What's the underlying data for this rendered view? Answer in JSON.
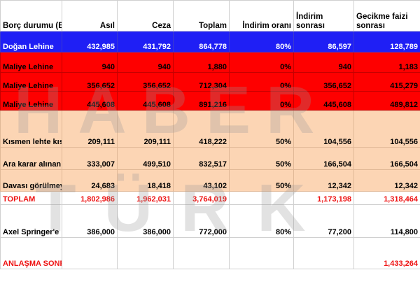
{
  "headers": {
    "label": "Borç durumu (Bin TL)",
    "asil": "Asıl",
    "ceza": "Ceza",
    "toplam": "Toplam",
    "indirim_orani": "İndirim oranı",
    "indirim_sonrasi": "İndirim sonrası",
    "gecikme": "Gecikme faizi sonrası"
  },
  "rows": [
    {
      "label": "Doğan Lehine",
      "asil": "432,985",
      "ceza": "431,792",
      "toplam": "864,778",
      "oran": "80%",
      "indirim": "86,597",
      "gecikme": "128,789"
    },
    {
      "label": "Maliye Lehine",
      "asil": "940",
      "ceza": "940",
      "toplam": "1,880",
      "oran": "0%",
      "indirim": "940",
      "gecikme": "1,183"
    },
    {
      "label": "Maliye Lehine",
      "asil": "356,652",
      "ceza": "356,652",
      "toplam": "712,304",
      "oran": "0%",
      "indirim": "356,652",
      "gecikme": "415,279"
    },
    {
      "label": "Maliye Lehine",
      "asil": "445,608",
      "ceza": "445,608",
      "toplam": "891,216",
      "oran": "0%",
      "indirim": "445,608",
      "gecikme": "489,812"
    },
    {
      "label": "Kısmen lehte kısmen alehte",
      "asil": "209,111",
      "ceza": "209,111",
      "toplam": "418,222",
      "oran": "50%",
      "indirim": "104,556",
      "gecikme": "104,556"
    },
    {
      "label": "Ara karar alınan",
      "asil": "333,007",
      "ceza": "499,510",
      "toplam": "832,517",
      "oran": "50%",
      "indirim": "166,504",
      "gecikme": "166,504"
    },
    {
      "label": "Davası görülmeyen",
      "asil": "24,683",
      "ceza": "18,418",
      "toplam": "43,102",
      "oran": "50%",
      "indirim": "12,342",
      "gecikme": "12,342"
    },
    {
      "label": "TOPLAM",
      "asil": "1,802,986",
      "ceza": "1,962,031",
      "toplam": "3,764,019",
      "oran": "",
      "indirim": "1,173,198",
      "gecikme": "1,318,464"
    },
    {
      "label": "Axel Springer'e hisse satışı",
      "asil": "386,000",
      "ceza": "386,000",
      "toplam": "772,000",
      "oran": "80%",
      "indirim": "77,200",
      "gecikme": "114,800"
    },
    {
      "label": "ANLAŞMA SONRASI TOPLAM",
      "asil": "",
      "ceza": "",
      "toplam": "",
      "oran": "",
      "indirim": "",
      "gecikme": "1,433,264"
    }
  ],
  "watermark": {
    "line1": "HABER",
    "line2": "TÜRK"
  },
  "colors": {
    "blue_row": "#1f1ff5",
    "red_row": "#fe0000",
    "peach_row": "#fcd5b4",
    "total_text": "#ee1111",
    "oran_green": "#1e9a1e"
  }
}
